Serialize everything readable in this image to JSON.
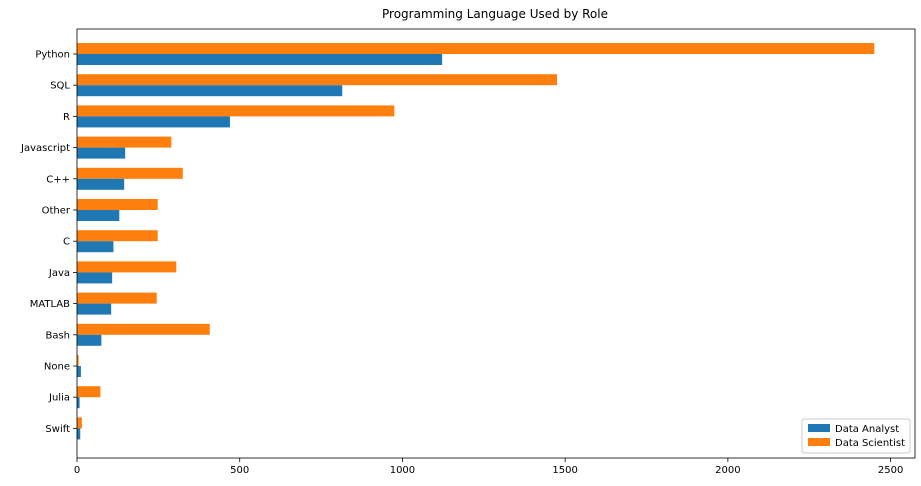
{
  "chart_data": {
    "type": "bar",
    "orientation": "horizontal",
    "title": "Programming Language Used by Role",
    "xlabel": "",
    "ylabel": "",
    "categories": [
      "Python",
      "SQL",
      "R",
      "Javascript",
      "C++",
      "Other",
      "C",
      "Java",
      "MATLAB",
      "Bash",
      "None",
      "Julia",
      "Swift"
    ],
    "series": [
      {
        "name": "Data Analyst",
        "color": "#1f77b4",
        "values": [
          1122,
          815,
          470,
          148,
          145,
          130,
          112,
          108,
          105,
          75,
          12,
          8,
          10
        ]
      },
      {
        "name": "Data Scientist",
        "color": "#ff7f0e",
        "values": [
          2450,
          1475,
          975,
          290,
          325,
          248,
          248,
          305,
          245,
          408,
          5,
          72,
          15
        ]
      }
    ],
    "xlim": [
      0,
      2575
    ],
    "xticks": [
      0,
      500,
      1000,
      1500,
      2000,
      2500
    ],
    "grid": false,
    "legend_position": "bottom-right"
  }
}
